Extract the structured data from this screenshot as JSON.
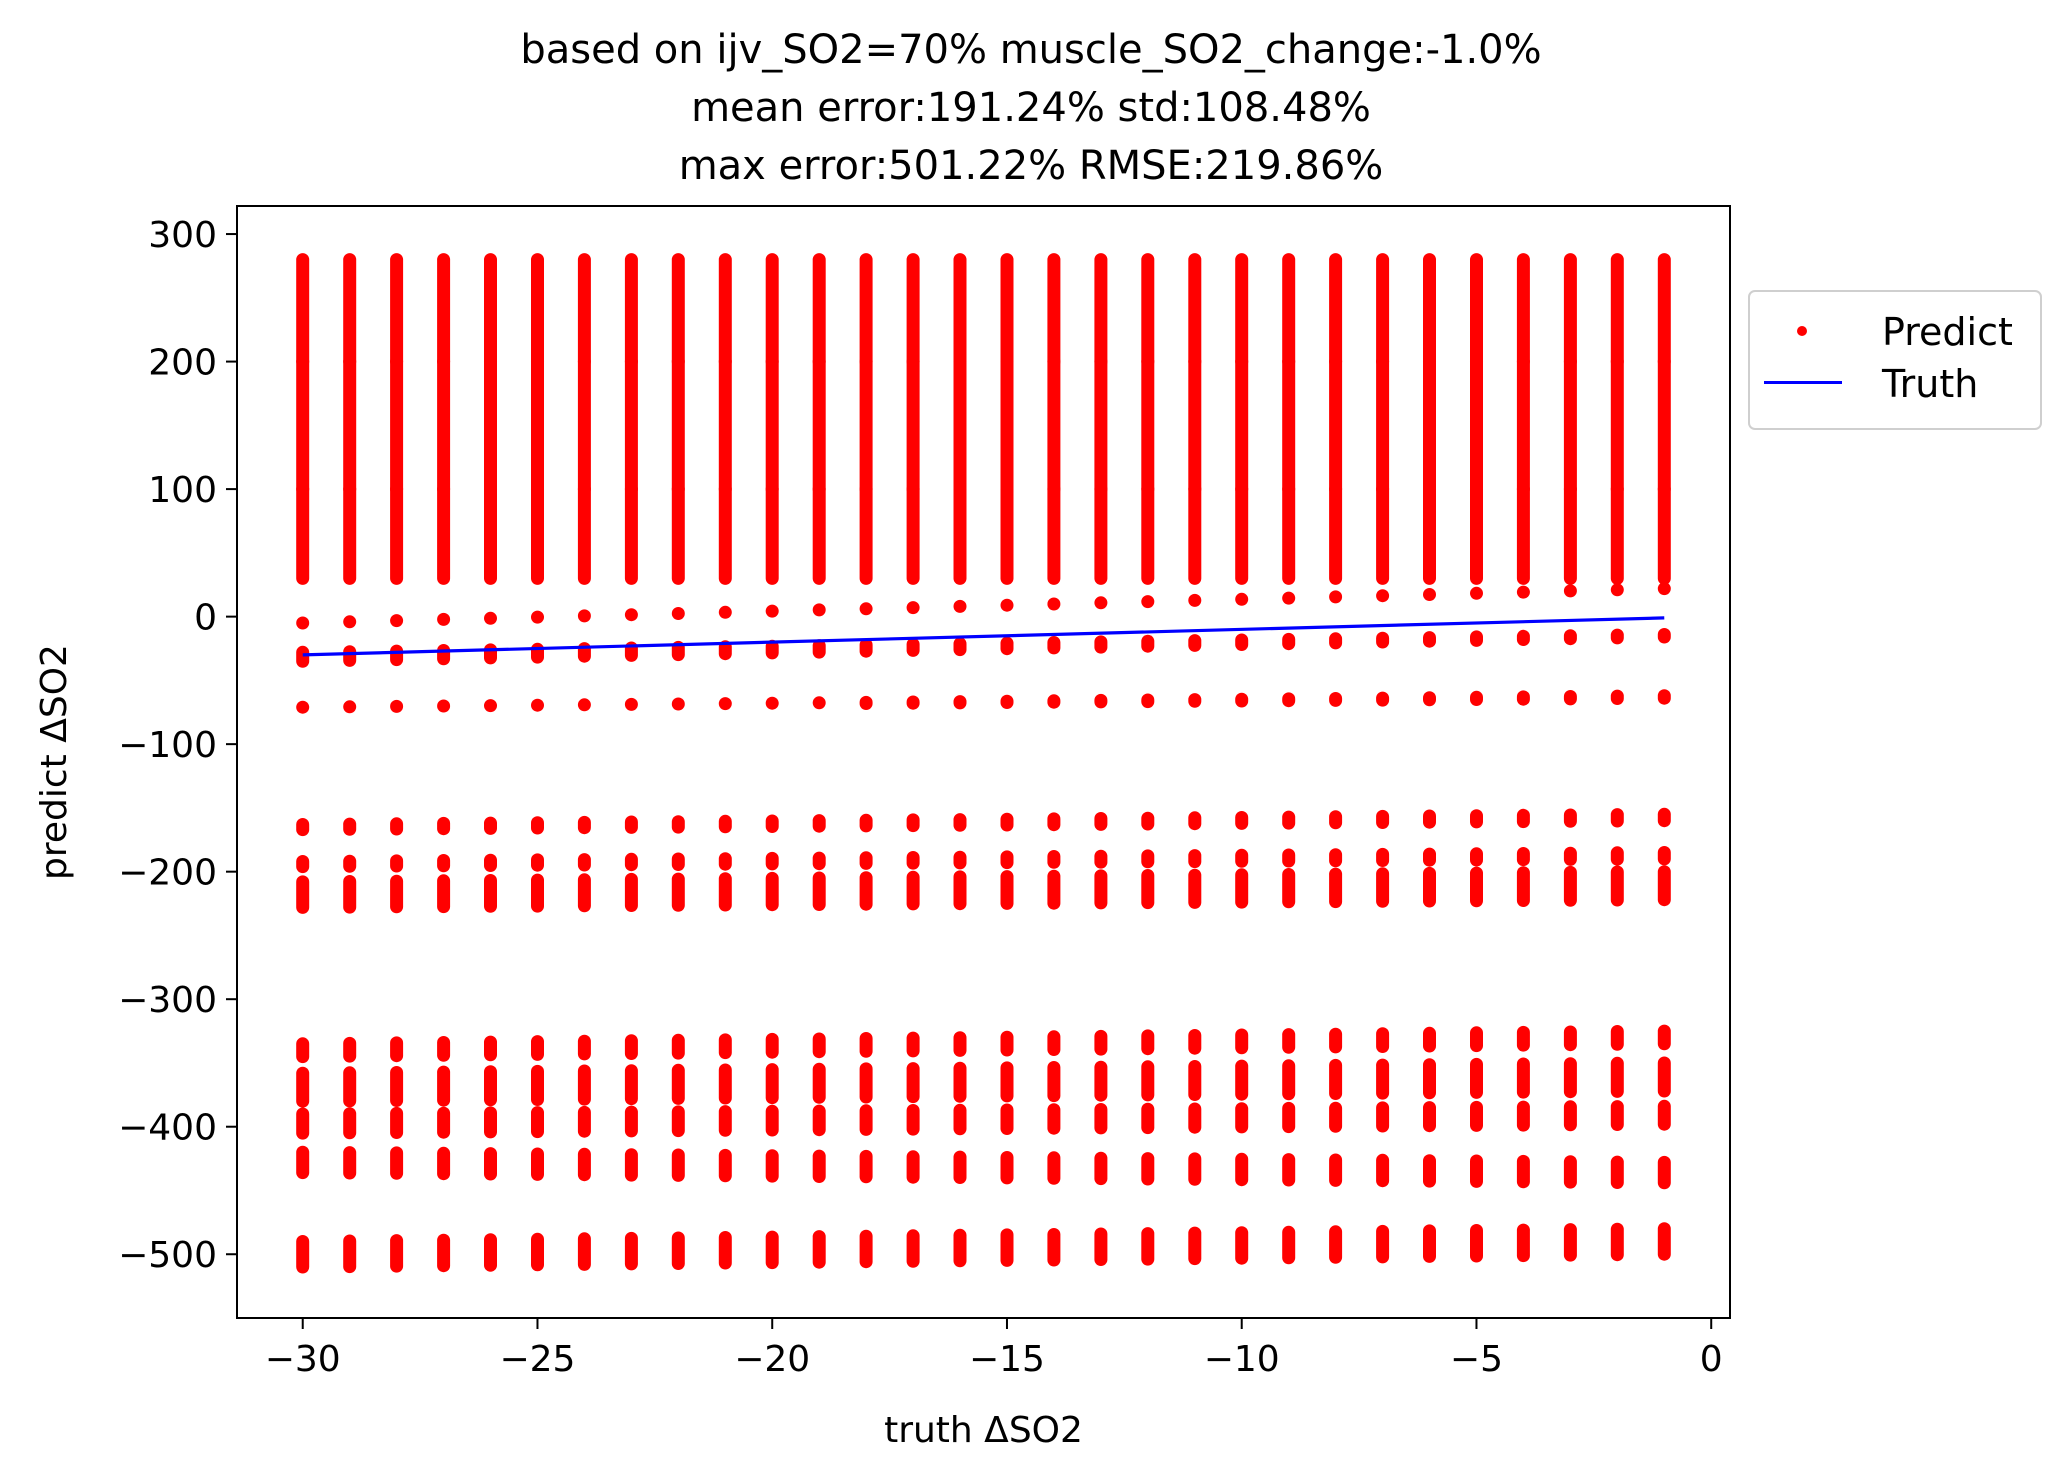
{
  "title": {
    "line1": "based on ijv_SO2=70% muscle_SO2_change:-1.0%",
    "line2": "mean error:191.24% std:108.48%",
    "line3": "max error:501.22% RMSE:219.86%"
  },
  "colors": {
    "predict": "#ff0000",
    "truth": "#0000ff",
    "axis": "#000000"
  },
  "legend": {
    "placement": "outside-right-top",
    "predict_label": "Predict",
    "truth_label": "Truth"
  },
  "chart_data": {
    "type": "scatter",
    "title": "based on ijv_SO2=70% muscle_SO2_change:-1.0%\nmean error:191.24% std:108.48%\nmax error:501.22% RMSE:219.86%",
    "xlabel": "truth ΔSO2",
    "ylabel": "predict ΔSO2",
    "xlim": [
      -31.4,
      0.4
    ],
    "ylim": [
      -550,
      322
    ],
    "xticks": [
      -30,
      -25,
      -20,
      -15,
      -10,
      -5,
      0
    ],
    "xtick_labels": [
      "−30",
      "−25",
      "−20",
      "−15",
      "−10",
      "−5",
      "0"
    ],
    "yticks": [
      300,
      200,
      100,
      0,
      -100,
      -200,
      -300,
      -400,
      -500
    ],
    "ytick_labels": [
      "300",
      "200",
      "100",
      "0",
      "−100",
      "−200",
      "−300",
      "−400",
      "−500"
    ],
    "grid": false,
    "x": [
      -30,
      -29,
      -28,
      -27,
      -26,
      -25,
      -24,
      -23,
      -22,
      -21,
      -20,
      -19,
      -18,
      -17,
      -16,
      -15,
      -14,
      -13,
      -12,
      -11,
      -10,
      -9,
      -8,
      -7,
      -6,
      -5,
      -4,
      -3,
      -2,
      -1
    ],
    "series": [
      {
        "name": "Predict",
        "marker": "dot",
        "color": "#ff0000",
        "clusters_at_x_minus_30": [
          {
            "y_from": 200,
            "y_to": 280
          },
          {
            "y_from": 100,
            "y_to": 200
          },
          {
            "y_from": 30,
            "y_to": 100
          },
          {
            "y_from": -5,
            "y_to": -5
          },
          {
            "y_from": -28,
            "y_to": -35
          },
          {
            "y_from": -71,
            "y_to": -71
          },
          {
            "y_from": -163,
            "y_to": -167
          },
          {
            "y_from": -192,
            "y_to": -196
          },
          {
            "y_from": -208,
            "y_to": -228
          },
          {
            "y_from": -335,
            "y_to": -345
          },
          {
            "y_from": -358,
            "y_to": -380
          },
          {
            "y_from": -390,
            "y_to": -405
          },
          {
            "y_from": -420,
            "y_to": -436
          },
          {
            "y_from": -490,
            "y_to": -510
          }
        ],
        "clusters_at_x_minus_1": [
          {
            "y_from": 200,
            "y_to": 280
          },
          {
            "y_from": 100,
            "y_to": 200
          },
          {
            "y_from": 30,
            "y_to": 100
          },
          {
            "y_from": 22,
            "y_to": 22
          },
          {
            "y_from": -14,
            "y_to": -16
          },
          {
            "y_from": -62,
            "y_to": -64
          },
          {
            "y_from": -155,
            "y_to": -160
          },
          {
            "y_from": -185,
            "y_to": -190
          },
          {
            "y_from": -200,
            "y_to": -222
          },
          {
            "y_from": -325,
            "y_to": -335
          },
          {
            "y_from": -350,
            "y_to": -372
          },
          {
            "y_from": -384,
            "y_to": -398
          },
          {
            "y_from": -428,
            "y_to": -444
          },
          {
            "y_from": -480,
            "y_to": -500
          }
        ]
      },
      {
        "name": "Truth",
        "marker": "line",
        "color": "#0000ff",
        "points": [
          [
            -30,
            -30
          ],
          [
            -1,
            -1
          ]
        ]
      }
    ]
  }
}
